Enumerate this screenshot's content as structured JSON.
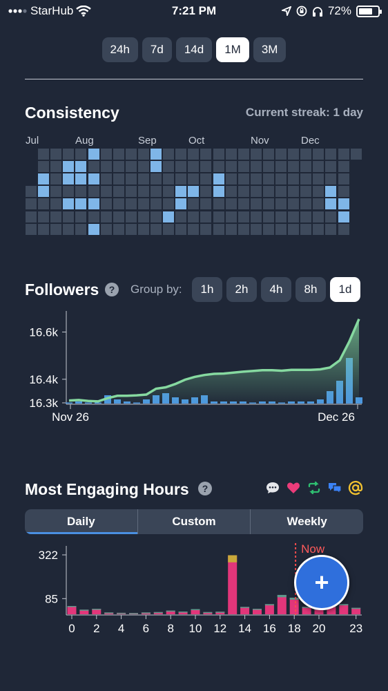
{
  "status_bar": {
    "carrier": "StarHub",
    "time": "7:21 PM",
    "battery": "72%",
    "battery_level": 0.72
  },
  "ranges": [
    {
      "label": "24h",
      "active": false
    },
    {
      "label": "7d",
      "active": false
    },
    {
      "label": "14d",
      "active": false
    },
    {
      "label": "1M",
      "active": true
    },
    {
      "label": "3M",
      "active": false
    }
  ],
  "consistency": {
    "title": "Consistency",
    "streak": "Current streak: 1 day",
    "months": [
      "Jul",
      "Aug",
      "Sep",
      "Oct",
      "Nov",
      "Dec"
    ],
    "active_cells": [
      [
        1,
        3
      ],
      [
        2,
        3
      ],
      [
        1,
        4
      ],
      [
        0,
        5
      ],
      [
        2,
        5
      ],
      [
        0,
        10
      ],
      [
        1,
        10
      ],
      [
        2,
        1
      ],
      [
        4,
        3
      ],
      [
        2,
        4
      ],
      [
        4,
        4
      ],
      [
        3,
        12
      ],
      [
        3,
        13
      ],
      [
        4,
        12
      ],
      [
        2,
        15
      ],
      [
        3,
        15
      ],
      [
        4,
        24
      ],
      [
        2,
        27
      ],
      [
        3,
        24
      ],
      [
        4,
        25
      ],
      [
        5,
        25
      ],
      [
        5,
        11
      ],
      [
        3,
        1
      ],
      [
        4,
        5
      ],
      [
        6,
        5
      ]
    ]
  },
  "followers": {
    "title": "Followers",
    "group_by_label": "Group by:",
    "group_options": [
      {
        "label": "1h",
        "active": false
      },
      {
        "label": "2h",
        "active": false
      },
      {
        "label": "4h",
        "active": false
      },
      {
        "label": "8h",
        "active": false
      },
      {
        "label": "1d",
        "active": true
      }
    ]
  },
  "chart_data": [
    {
      "type": "line",
      "x_labels": [
        "Nov 26",
        "Dec 26"
      ],
      "yticks": [
        "16.3k",
        "16.4k",
        "16.6k"
      ],
      "ylim": [
        16300,
        16660
      ],
      "x": [
        0,
        1,
        2,
        3,
        4,
        5,
        6,
        7,
        8,
        9,
        10,
        11,
        12,
        13,
        14,
        15,
        16,
        17,
        18,
        19,
        20,
        21,
        22,
        23,
        24,
        25,
        26,
        27,
        28,
        29,
        30
      ],
      "series": [
        {
          "values": [
            16310,
            16312,
            16308,
            16306,
            16320,
            16330,
            16330,
            16332,
            16335,
            16360,
            16366,
            16380,
            16398,
            16410,
            16418,
            16423,
            16424,
            16428,
            16432,
            16435,
            16438,
            16438,
            16436,
            16440,
            16440,
            16440,
            16442,
            16450,
            16480,
            16560,
            16655
          ]
        }
      ],
      "bars": [
        0,
        1,
        0,
        0,
        4,
        2,
        1,
        0,
        2,
        4,
        5,
        3,
        2,
        3,
        4,
        1,
        1,
        1,
        1,
        0,
        1,
        1,
        0,
        1,
        1,
        1,
        2,
        6,
        11,
        22,
        3
      ]
    },
    {
      "type": "bar",
      "categories": [
        "0",
        "1",
        "2",
        "3",
        "4",
        "5",
        "6",
        "7",
        "8",
        "9",
        "10",
        "11",
        "12",
        "13",
        "14",
        "15",
        "16",
        "17",
        "18",
        "19",
        "20",
        "21",
        "22",
        "23"
      ],
      "xticks": [
        "0",
        "2",
        "4",
        "6",
        "8",
        "10",
        "12",
        "14",
        "16",
        "18",
        "20",
        "23"
      ],
      "yticks": [
        "85",
        "322"
      ],
      "values": [
        45,
        25,
        30,
        10,
        8,
        7,
        10,
        12,
        20,
        15,
        28,
        12,
        14,
        320,
        40,
        30,
        55,
        105,
        90,
        40,
        30,
        45,
        55,
        35
      ],
      "marker_label": "Now",
      "marker_index": 19
    }
  ],
  "engaging": {
    "title": "Most Engaging Hours",
    "tabs": [
      {
        "label": "Daily",
        "active": true
      },
      {
        "label": "Custom",
        "active": false
      },
      {
        "label": "Weekly",
        "active": false
      }
    ],
    "icon_colors": {
      "comment": "#e5e7eb",
      "like": "#ec3c7a",
      "retweet": "#2fbf71",
      "dm": "#3b82f6",
      "mention": "#f2c230"
    }
  },
  "fab": {
    "label": "+"
  }
}
